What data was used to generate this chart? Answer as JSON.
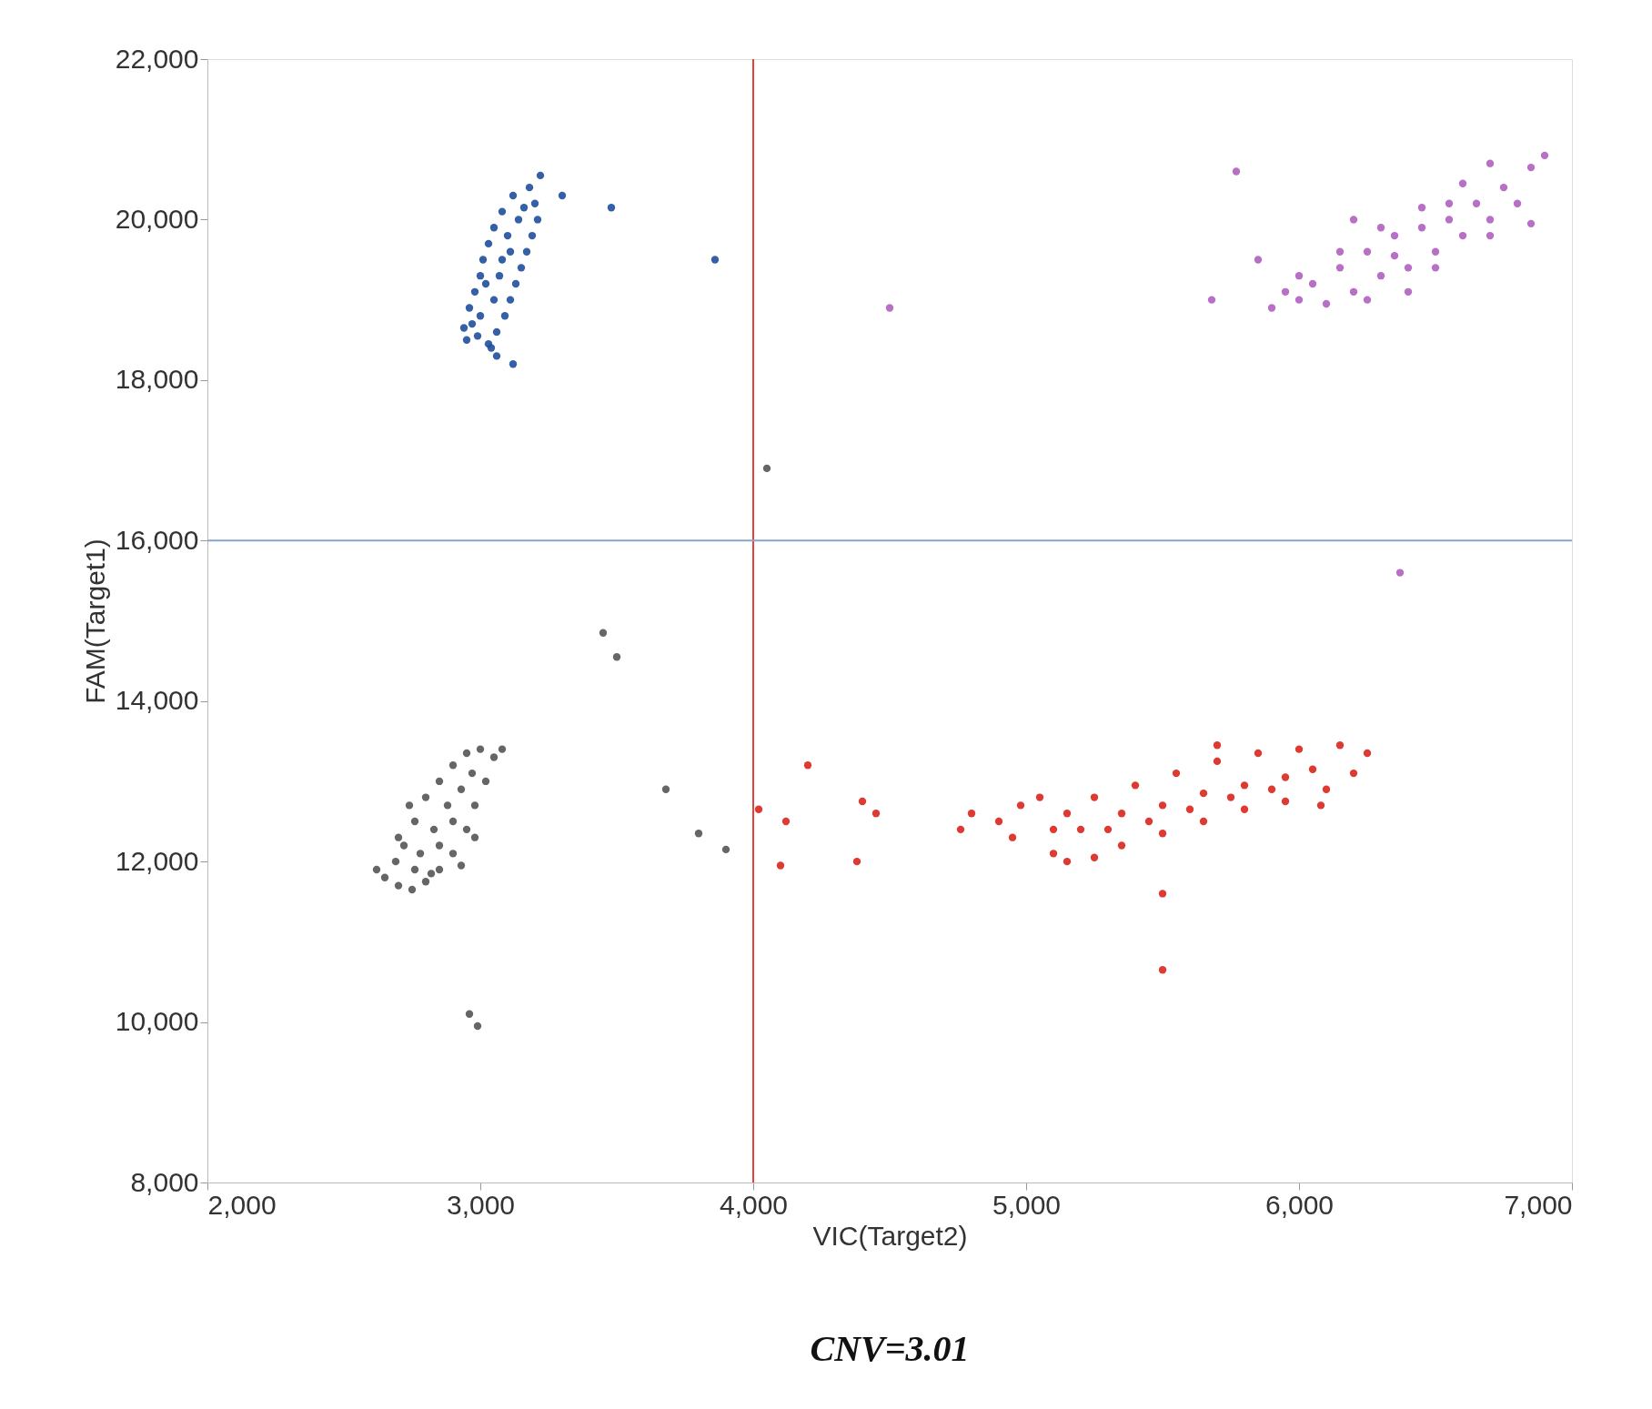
{
  "chart_data": {
    "type": "scatter",
    "xlabel": "VIC(Target2)",
    "ylabel": "FAM(Target1)",
    "xlim": [
      2000,
      7000
    ],
    "xticks": [
      {
        "value": 2000,
        "label": "2,000"
      },
      {
        "value": 3000,
        "label": "3,000"
      },
      {
        "value": 4000,
        "label": "4,000"
      },
      {
        "value": 5000,
        "label": "5,000"
      },
      {
        "value": 6000,
        "label": "6,000"
      },
      {
        "value": 7000,
        "label": "7,000"
      }
    ],
    "ylim": [
      8000,
      22000
    ],
    "yticks": [
      {
        "value": 8000,
        "label": "8,000"
      },
      {
        "value": 10000,
        "label": "10,000"
      },
      {
        "value": 12000,
        "label": "12,000"
      },
      {
        "value": 14000,
        "label": "14,000"
      },
      {
        "value": 16000,
        "label": "16,000"
      },
      {
        "value": 18000,
        "label": "18,000"
      },
      {
        "value": 20000,
        "label": "20,000"
      },
      {
        "value": 22000,
        "label": "22,000"
      }
    ],
    "grid": false,
    "legend": false,
    "marker": "circle",
    "series": [
      {
        "color": "#1f4e9c",
        "x": [
          2950,
          2970,
          2960,
          2980,
          3000,
          3010,
          3030,
          3050,
          3080,
          3120,
          3180,
          3200,
          3210,
          3190,
          3170,
          3150,
          3130,
          3110,
          3090,
          3060,
          3030,
          2990,
          3050,
          3080,
          3100,
          3020,
          3140,
          3060,
          3120,
          3220,
          3000,
          3070,
          3110,
          3160,
          2940,
          3040,
          3300,
          3480,
          3860
        ],
        "values": [
          18500,
          18700,
          18900,
          19100,
          19300,
          19500,
          19700,
          19900,
          20100,
          20300,
          20400,
          20200,
          20000,
          19800,
          19600,
          19400,
          19200,
          19000,
          18800,
          18600,
          18450,
          18550,
          19000,
          19500,
          19800,
          19200,
          20000,
          18300,
          18200,
          20550,
          18800,
          19300,
          19600,
          20150,
          18650,
          18400,
          20300,
          20150,
          19500
        ]
      },
      {
        "color": "#555555",
        "x": [
          2650,
          2700,
          2750,
          2800,
          2850,
          2900,
          2950,
          2980,
          3020,
          3050,
          3000,
          2950,
          2900,
          2850,
          2800,
          2760,
          2720,
          2690,
          2780,
          2830,
          2880,
          2930,
          2970,
          2760,
          2850,
          2900,
          2820,
          2930,
          2980,
          2700,
          3080,
          2740,
          2620,
          2960,
          2990,
          3450,
          3500,
          3680,
          3800,
          3900,
          4050
        ],
        "values": [
          11800,
          11700,
          11650,
          11750,
          11900,
          12100,
          12400,
          12700,
          13000,
          13300,
          13400,
          13350,
          13200,
          13000,
          12800,
          12500,
          12200,
          12000,
          12100,
          12400,
          12700,
          12900,
          13100,
          11900,
          12200,
          12500,
          11850,
          11950,
          12300,
          12300,
          13400,
          12700,
          11900,
          10100,
          9950,
          14850,
          14550,
          12900,
          12350,
          12150,
          16900
        ]
      },
      {
        "color": "#d9261c",
        "x": [
          5100,
          5150,
          5250,
          5350,
          5500,
          5650,
          5800,
          5950,
          6100,
          6200,
          6250,
          6150,
          6000,
          5850,
          5700,
          5550,
          5400,
          5250,
          5150,
          5100,
          5200,
          5350,
          5500,
          5650,
          5800,
          5950,
          6050,
          5300,
          5450,
          5600,
          5750,
          5900,
          4980,
          4900,
          4800,
          4760,
          4950,
          5050,
          5500,
          5500,
          6080,
          5700,
          4200,
          4120,
          4100,
          4380,
          4400,
          4450,
          4020
        ],
        "values": [
          12100,
          12000,
          12050,
          12200,
          12350,
          12500,
          12650,
          12750,
          12900,
          13100,
          13350,
          13450,
          13400,
          13350,
          13250,
          13100,
          12950,
          12800,
          12600,
          12400,
          12400,
          12600,
          12700,
          12850,
          12950,
          13050,
          13150,
          12400,
          12500,
          12650,
          12800,
          12900,
          12700,
          12500,
          12600,
          12400,
          12300,
          12800,
          11600,
          10650,
          12700,
          13450,
          13200,
          12500,
          11950,
          12000,
          12750,
          12600,
          12650
        ]
      },
      {
        "color": "#b05fc0",
        "x": [
          5900,
          5950,
          6000,
          6050,
          6150,
          6250,
          6350,
          6450,
          6550,
          6650,
          6750,
          6850,
          6800,
          6700,
          6600,
          6500,
          6400,
          6300,
          6200,
          6100,
          6000,
          6150,
          6300,
          6450,
          6600,
          6700,
          6900,
          6850,
          6500,
          6250,
          6400,
          5850,
          6200,
          6550,
          6700,
          6350,
          5770,
          5680,
          4500,
          6370
        ],
        "values": [
          18900,
          19100,
          19300,
          19200,
          19400,
          19600,
          19800,
          19900,
          20000,
          20200,
          20400,
          20650,
          20200,
          20000,
          19800,
          19600,
          19400,
          19300,
          19100,
          18950,
          19000,
          19600,
          19900,
          20150,
          20450,
          20700,
          20800,
          19950,
          19400,
          19000,
          19100,
          19500,
          20000,
          20200,
          19800,
          19550,
          20600,
          19000,
          18900,
          15600
        ]
      }
    ],
    "ref_lines": [
      {
        "axis": "x",
        "value": 4000,
        "color": "#e8403a"
      },
      {
        "axis": "y",
        "value": 16000,
        "color": "#8aa4c8"
      }
    ],
    "annotations": [
      "CNV=3.01"
    ]
  }
}
